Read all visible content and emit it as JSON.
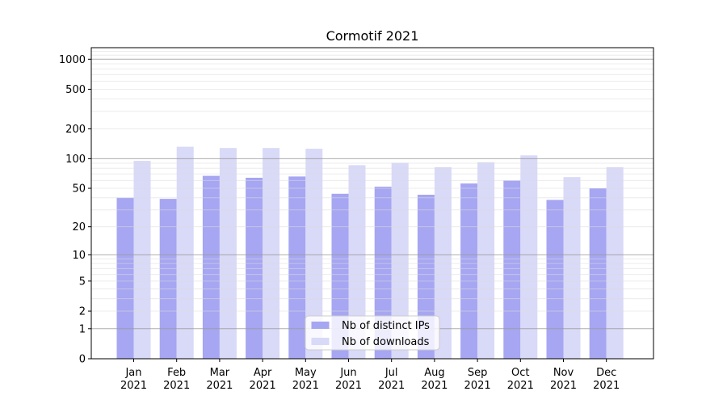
{
  "chart_data": {
    "type": "bar",
    "title": "Cormotif 2021",
    "categories": [
      "Jan",
      "Feb",
      "Mar",
      "Apr",
      "May",
      "Jun",
      "Jul",
      "Aug",
      "Sep",
      "Oct",
      "Nov",
      "Dec"
    ],
    "year": "2021",
    "series": [
      {
        "name": "Nb of distinct IPs",
        "color": "#a6a6f2",
        "values": [
          40,
          39,
          67,
          64,
          66,
          44,
          52,
          43,
          56,
          60,
          38,
          50
        ]
      },
      {
        "name": "Nb of downloads",
        "color": "#d9d9f8",
        "values": [
          95,
          132,
          128,
          128,
          126,
          86,
          91,
          82,
          92,
          108,
          65,
          82
        ]
      }
    ],
    "xlabel": "",
    "ylabel": "",
    "yscale": "log1p",
    "ylim": [
      0,
      1306
    ],
    "yticks": [
      0,
      1,
      2,
      5,
      10,
      20,
      50,
      100,
      200,
      500,
      1000
    ],
    "minor_yticks": [
      3,
      4,
      6,
      7,
      8,
      9,
      30,
      40,
      60,
      70,
      80,
      90,
      300,
      400,
      600,
      700,
      800,
      900,
      1100,
      1200
    ],
    "major_gridline_values": [
      1,
      10,
      100,
      1000
    ],
    "grid": true,
    "legend_position": "lower center"
  },
  "colors": {
    "background": "#ffffff",
    "bar_distinct_ips": "#a6a6f2",
    "bar_downloads": "#d9d9f8",
    "axis_border": "#000000",
    "major_gridline": "#b0b0b0",
    "minor_gridline": "#e8e8e8",
    "legend_border": "#cccccc",
    "legend_background": "rgba(255,255,255,0.8)",
    "text": "#000000"
  }
}
